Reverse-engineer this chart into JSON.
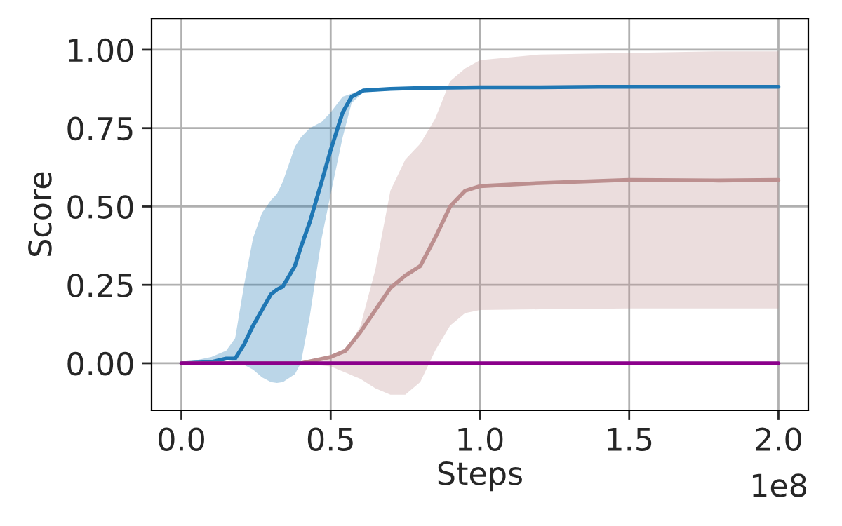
{
  "chart_data": {
    "type": "line",
    "xlabel": "Steps",
    "ylabel": "Score",
    "annotations": [
      "1e8"
    ],
    "xlim": [
      -0.1,
      2.1
    ],
    "ylim": [
      -0.15,
      1.1
    ],
    "xticks": [
      {
        "value": 0,
        "label": "0.0"
      },
      0.5,
      {
        "value": 1,
        "label": "1.0"
      },
      1.5,
      {
        "value": 2,
        "label": "2.0"
      }
    ],
    "yticks": [
      {
        "value": 0,
        "label": "0.00"
      },
      {
        "value": 0.25,
        "label": "0.25"
      },
      {
        "value": 0.5,
        "label": "0.50"
      },
      {
        "value": 0.75,
        "label": "0.75"
      },
      {
        "value": 1.0,
        "label": "1.00"
      }
    ],
    "grid": true,
    "legend": false,
    "series": [
      {
        "color": "#1f77b4",
        "x": [
          0,
          0.1,
          0.15,
          0.18,
          0.21,
          0.24,
          0.27,
          0.3,
          0.32,
          0.34,
          0.38,
          0.4,
          0.43,
          0.47,
          0.5,
          0.54,
          0.57,
          0.61,
          0.7,
          0.8,
          1.0,
          1.2,
          1.4,
          1.6,
          1.8,
          2.0
        ],
        "values": [
          0,
          0.004,
          0.015,
          0.015,
          0.06,
          0.12,
          0.17,
          0.22,
          0.235,
          0.245,
          0.31,
          0.37,
          0.45,
          0.58,
          0.68,
          0.8,
          0.85,
          0.87,
          0.875,
          0.878,
          0.88,
          0.88,
          0.882,
          0.882,
          0.882,
          0.882
        ],
        "lower": [
          0,
          0.0,
          0.01,
          0.005,
          -0.005,
          -0.02,
          -0.045,
          -0.06,
          -0.063,
          -0.06,
          -0.035,
          0.0,
          0.15,
          0.4,
          0.54,
          0.72,
          0.83,
          0.865,
          0.87,
          0.873,
          0.875,
          0.875,
          0.877,
          0.877,
          0.877,
          0.877
        ],
        "upper": [
          0,
          0.02,
          0.04,
          0.08,
          0.25,
          0.4,
          0.48,
          0.52,
          0.54,
          0.58,
          0.69,
          0.72,
          0.75,
          0.77,
          0.8,
          0.85,
          0.86,
          0.875,
          0.88,
          0.882,
          0.885,
          0.885,
          0.887,
          0.887,
          0.887,
          0.887
        ]
      },
      {
        "color": "#bc8f8f",
        "x": [
          0,
          0.4,
          0.45,
          0.5,
          0.55,
          0.6,
          0.65,
          0.7,
          0.75,
          0.8,
          0.85,
          0.9,
          0.95,
          1.0,
          1.2,
          1.5,
          1.8,
          2.0
        ],
        "values": [
          0,
          0,
          0.01,
          0.02,
          0.04,
          0.1,
          0.17,
          0.24,
          0.28,
          0.31,
          0.4,
          0.5,
          0.55,
          0.565,
          0.575,
          0.585,
          0.583,
          0.585
        ],
        "lower": [
          0,
          0,
          -0.005,
          -0.01,
          -0.03,
          -0.05,
          -0.08,
          -0.1,
          -0.1,
          -0.06,
          0.04,
          0.12,
          0.16,
          0.17,
          0.172,
          0.175,
          0.175,
          0.175
        ],
        "upper": [
          0,
          0,
          0.005,
          0.02,
          0.035,
          0.12,
          0.3,
          0.55,
          0.65,
          0.7,
          0.78,
          0.9,
          0.94,
          0.967,
          0.985,
          0.99,
          0.995,
          0.995
        ]
      },
      {
        "color": "#8b008b",
        "x": [
          0,
          2.0
        ],
        "values": [
          0,
          0
        ]
      }
    ]
  }
}
